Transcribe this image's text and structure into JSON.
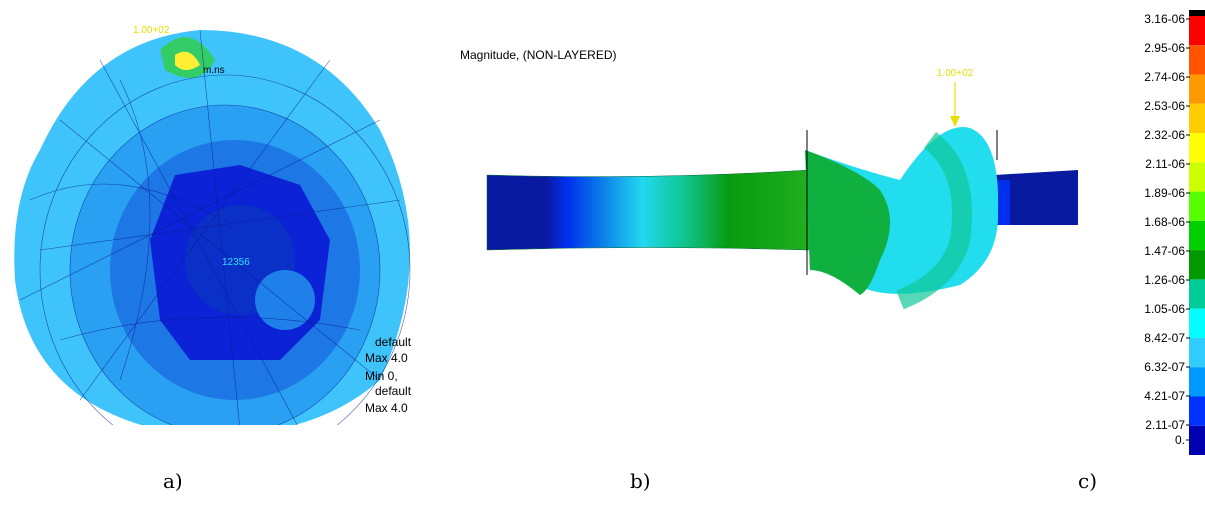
{
  "panel_a": {
    "annotations": [
      "1.00+02",
      "m.ns",
      "12356"
    ],
    "info": [
      "default",
      "Max 4.0",
      "Min 0,",
      "default",
      "Max 4.0"
    ],
    "caption": "a)"
  },
  "panel_b": {
    "title": "Magnitude, (NON-LAYERED)",
    "annotation": "1.00+02",
    "caption": "b)"
  },
  "panel_c": {
    "labels": [
      "3.16-06",
      "2.95-06",
      "2.74-06",
      "2.53-06",
      "2.32-06",
      "2.11-06",
      "1.89-06",
      "1.68-06",
      "1.47-06",
      "1.26-06",
      "1.05-06",
      "8.42-07",
      "6.32-07",
      "4.21-07",
      "2.11-07",
      "0."
    ],
    "colors": [
      "#000000",
      "#ff0000",
      "#ff5500",
      "#ff9900",
      "#ffcc00",
      "#ffff00",
      "#ccff00",
      "#55ff00",
      "#00d000",
      "#009a00",
      "#00cc99",
      "#00ffff",
      "#33ccff",
      "#0099ff",
      "#0033ff",
      "#0000b0"
    ],
    "caption": "c)"
  }
}
